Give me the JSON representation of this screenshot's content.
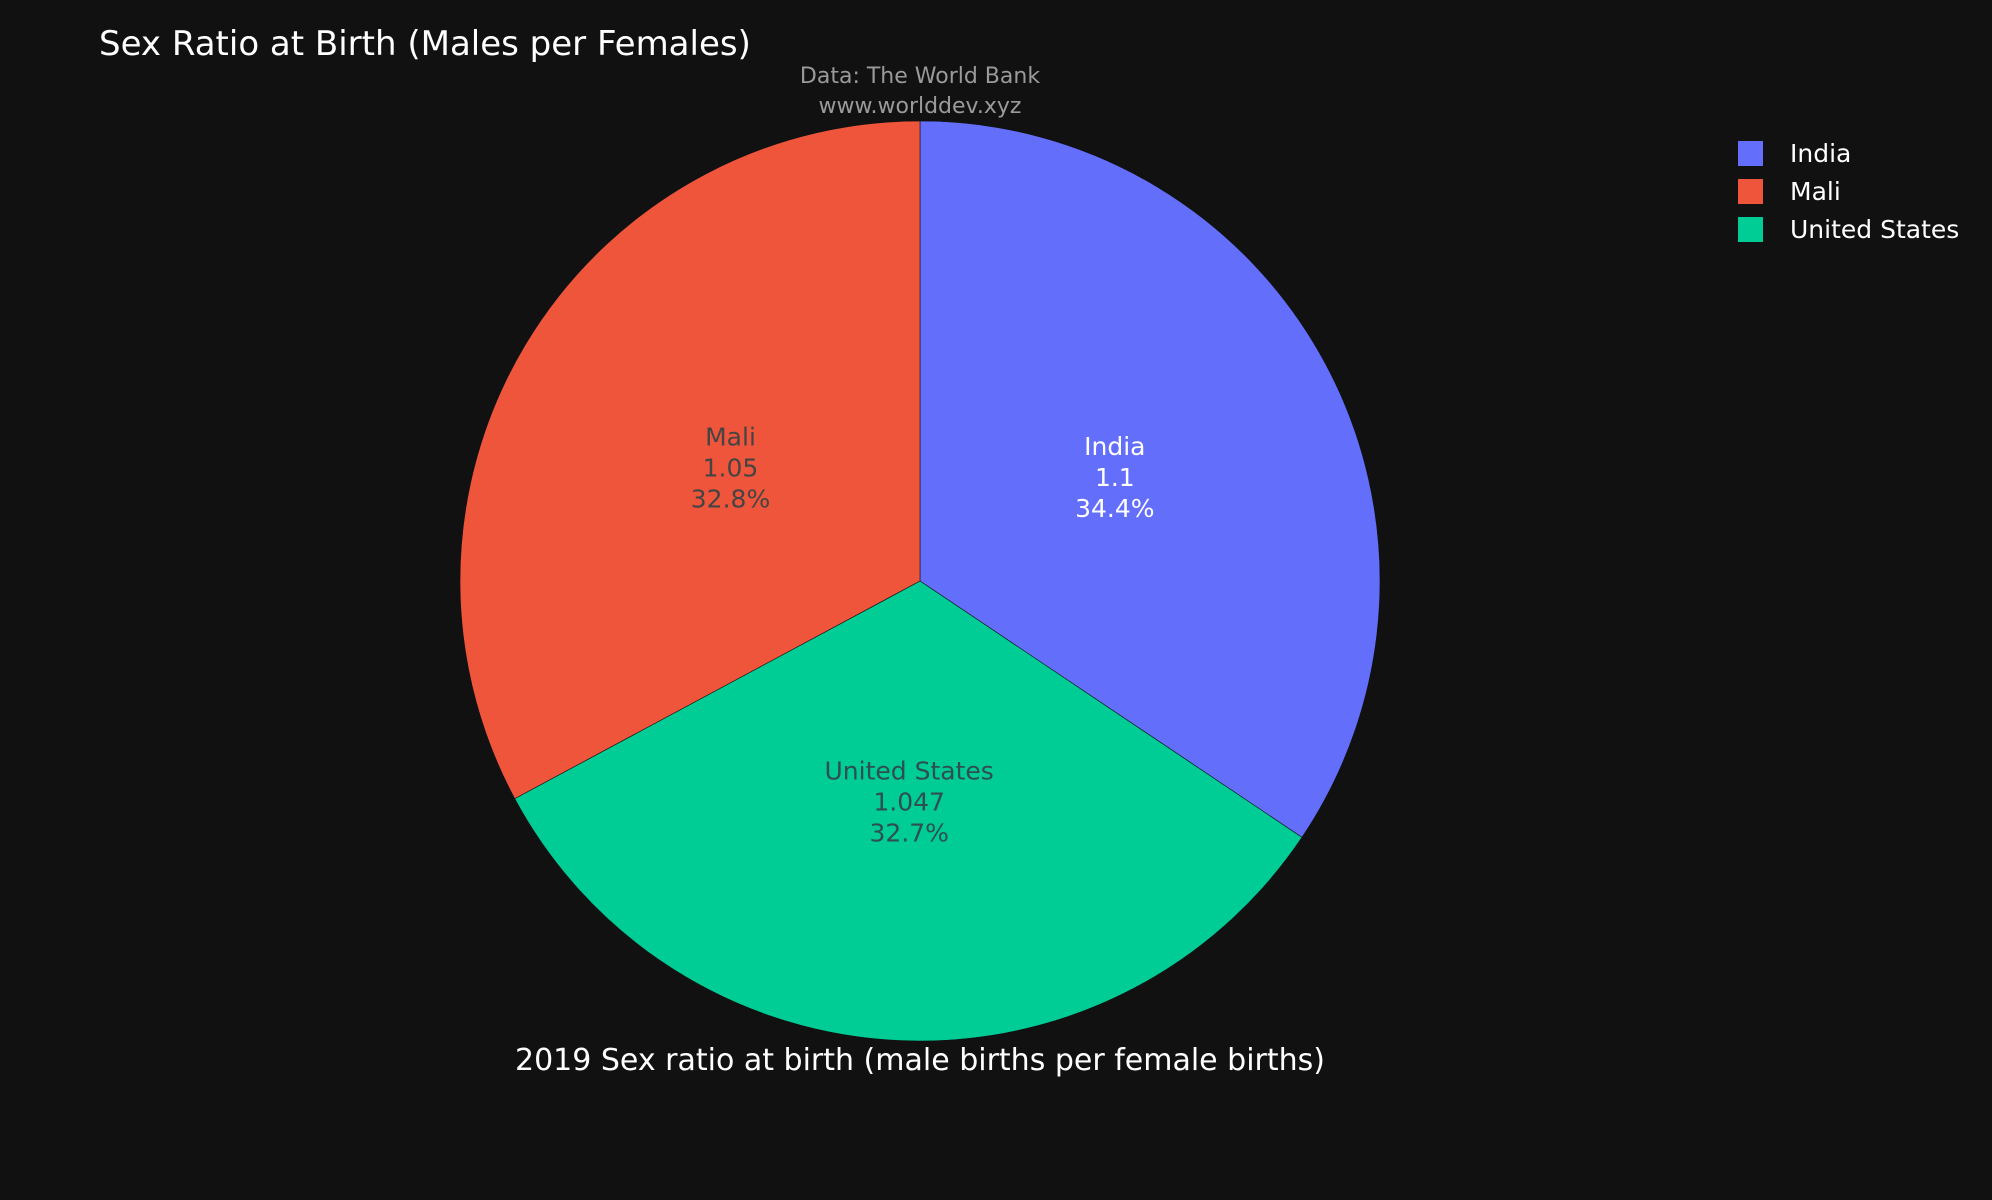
{
  "chart_data": {
    "type": "pie",
    "title": "Sex Ratio at Birth (Males per Females)",
    "source_line1": "Data: The World Bank",
    "source_line2": "www.worlddev.xyz",
    "subtitle": "2019 Sex ratio at birth (male births per female births)",
    "slices": [
      {
        "label": "India",
        "value": 1.1,
        "value_text": "1.1",
        "percent_text": "34.4%",
        "color": "#636efa",
        "text_color": "#ffffff"
      },
      {
        "label": "United States",
        "value": 1.047,
        "value_text": "1.047",
        "percent_text": "32.7%",
        "color": "#00cc96",
        "text_color": "#2f4f4f"
      },
      {
        "label": "Mali",
        "value": 1.05,
        "value_text": "1.05",
        "percent_text": "32.8%",
        "color": "#ef553b",
        "text_color": "#444444"
      }
    ],
    "legend": {
      "items": [
        {
          "label": "India",
          "color": "#636efa"
        },
        {
          "label": "Mali",
          "color": "#ef553b"
        },
        {
          "label": "United States",
          "color": "#00cc96"
        }
      ],
      "placement": "top-right"
    },
    "direction": "clockwise",
    "start_angle": "12 o'clock"
  }
}
